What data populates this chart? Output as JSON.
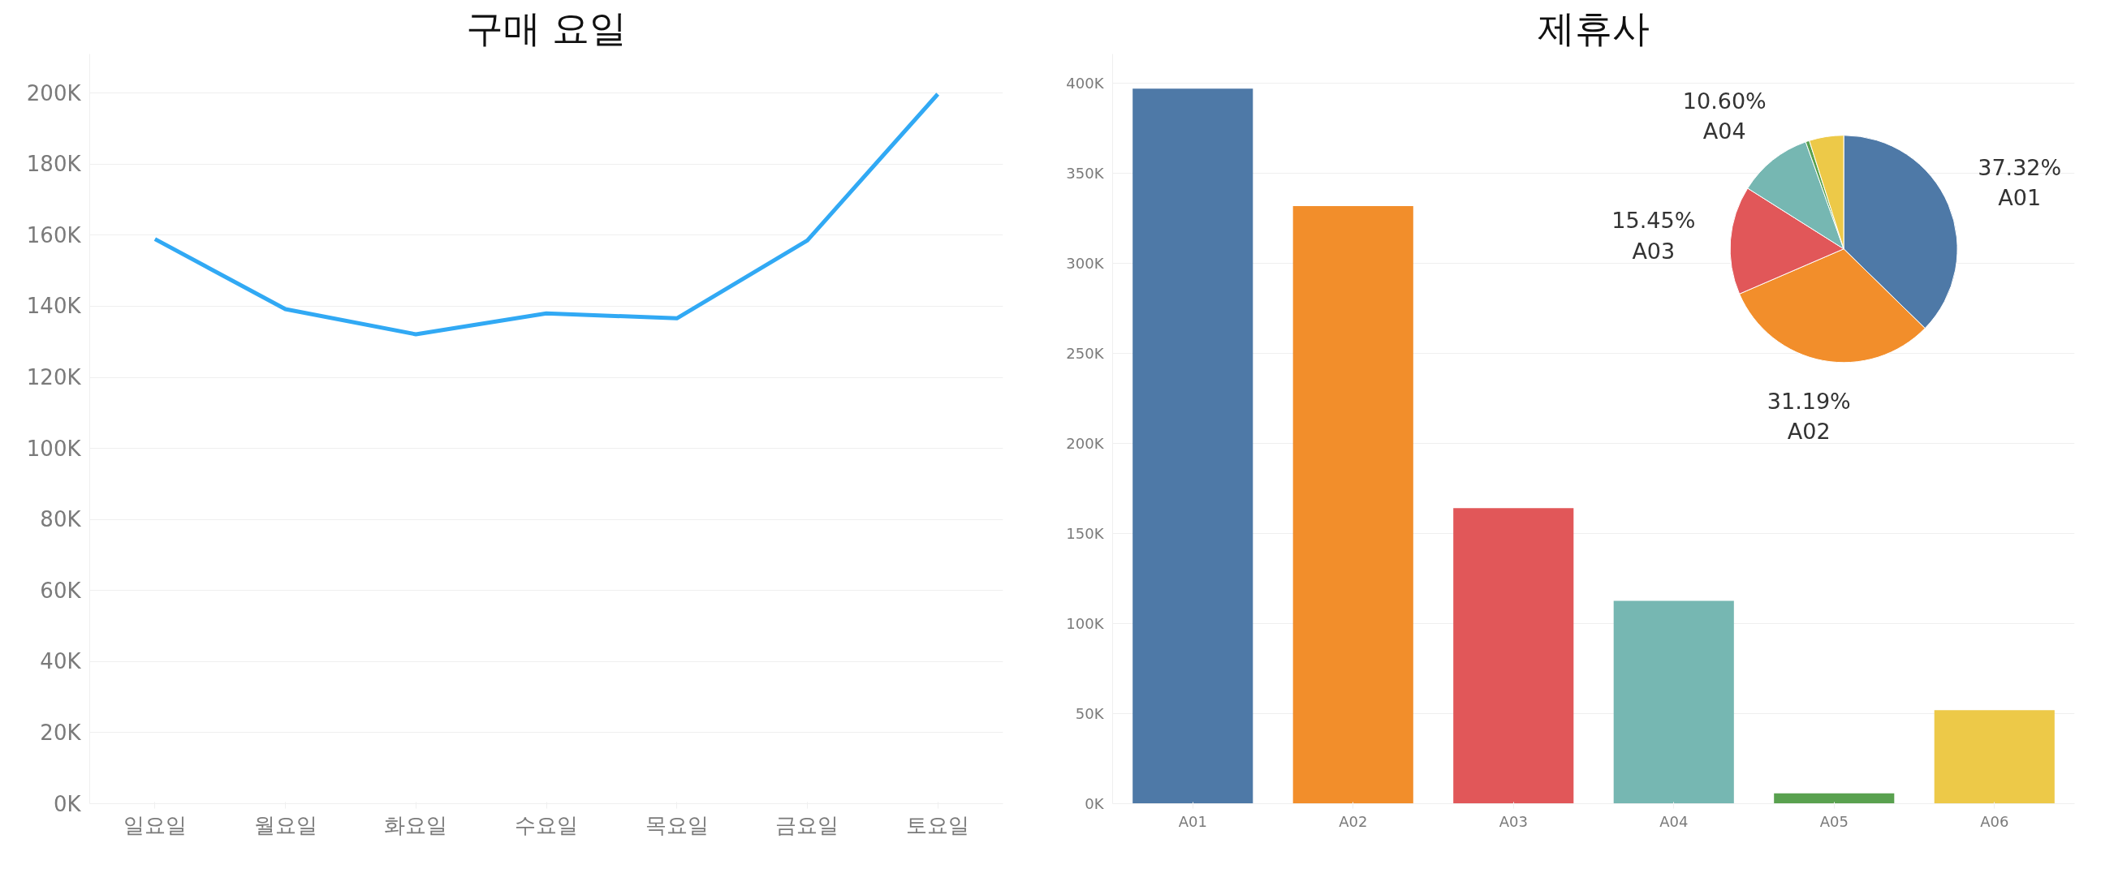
{
  "chart_data": [
    {
      "type": "line",
      "title": "구매 요일",
      "categories": [
        "일요일",
        "월요일",
        "화요일",
        "수요일",
        "목요일",
        "금요일",
        "토요일"
      ],
      "series": [
        {
          "color": "#31a9f4",
          "values": [
            158900,
            139200,
            132100,
            138000,
            136600,
            158500,
            199700
          ]
        }
      ],
      "ylim": [
        0,
        211000
      ],
      "yticks": [
        {
          "value": 0,
          "label": "0K"
        },
        {
          "value": 20000,
          "label": "20K"
        },
        {
          "value": 40000,
          "label": "40K"
        },
        {
          "value": 60000,
          "label": "60K"
        },
        {
          "value": 80000,
          "label": "80K"
        },
        {
          "value": 100000,
          "label": "100K"
        },
        {
          "value": 120000,
          "label": "120K"
        },
        {
          "value": 140000,
          "label": "140K"
        },
        {
          "value": 160000,
          "label": "160K"
        },
        {
          "value": 180000,
          "label": "180K"
        },
        {
          "value": 200000,
          "label": "200K"
        }
      ],
      "grid": "y",
      "marker": "none",
      "line_style": "solid"
    },
    {
      "type": "bar",
      "title": "제휴사",
      "categories": [
        "A01",
        "A02",
        "A03",
        "A04",
        "A05",
        "A06"
      ],
      "values": [
        396700,
        331600,
        164000,
        112600,
        5700,
        51900
      ],
      "colors": [
        "#4e79a7",
        "#f28e2b",
        "#e15759",
        "#76b7b2",
        "#59a14f",
        "#edc948"
      ],
      "ylim": [
        0,
        416000
      ],
      "yticks": [
        {
          "value": 0,
          "label": "0K"
        },
        {
          "value": 50000,
          "label": "50K"
        },
        {
          "value": 100000,
          "label": "100K"
        },
        {
          "value": 150000,
          "label": "150K"
        },
        {
          "value": 200000,
          "label": "200K"
        },
        {
          "value": 250000,
          "label": "250K"
        },
        {
          "value": 300000,
          "label": "300K"
        },
        {
          "value": 350000,
          "label": "350K"
        },
        {
          "value": 400000,
          "label": "400K"
        }
      ],
      "grid": "y"
    },
    {
      "type": "pie",
      "categories": [
        "A01",
        "A02",
        "A03",
        "A04",
        null,
        null
      ],
      "values": [
        37.32,
        31.19,
        15.45,
        10.6,
        0.54,
        4.9
      ],
      "colors": [
        "#4e79a7",
        "#f28e2b",
        "#e15759",
        "#76b7b2",
        "#59a14f",
        "#edc948"
      ],
      "value_labels": [
        "37.32%",
        "31.19%",
        "15.45%",
        "10.60%",
        null,
        null
      ]
    }
  ]
}
